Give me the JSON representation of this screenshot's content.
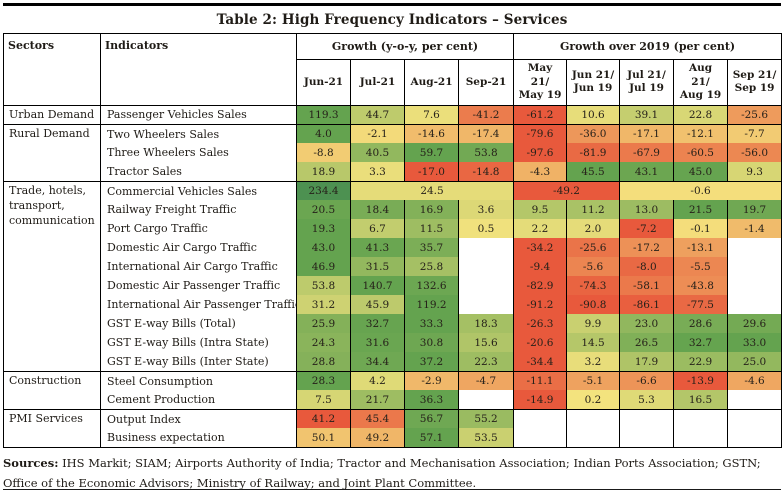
{
  "title": "Table 2: High Frequency Indicators – Services",
  "colors": {
    "scale_red": "#E8593C",
    "scale_yellow": "#F4E37E",
    "scale_green": "#64A34F",
    "dark_green_max": "#4D9151",
    "border": "#000000"
  },
  "table": {
    "col_headers": {
      "sectors": "Sectors",
      "indicators": "Indicators",
      "group_yoy": "Growth (y-o-y, per cent)",
      "group_2019": "Growth over 2019 (per cent)",
      "months_yoy": [
        "Jun-21",
        "Jul-21",
        "Aug-21",
        "Sep-21"
      ],
      "months_2019": [
        "May 21/\nMay 19",
        "Jun 21/\nJun 19",
        "Jul 21/\nJul 19",
        "Aug 21/\nAug 19",
        "Sep 21/\nSep 19"
      ]
    },
    "sections": [
      {
        "sector": "Urban Demand",
        "rows": [
          {
            "indicator": "Passenger Vehicles Sales",
            "cells": [
              "119.3",
              "44.7",
              "7.6",
              "-41.2",
              "-61.2",
              "10.6",
              "39.1",
              "22.8",
              "-25.6"
            ]
          }
        ]
      },
      {
        "sector": "Rural Demand",
        "rows": [
          {
            "indicator": "Two Wheelers Sales",
            "cells": [
              "4.0",
              "-2.1",
              "-14.6",
              "-17.4",
              "-79.6",
              "-36.0",
              "-17.1",
              "-12.1",
              "-7.7"
            ]
          },
          {
            "indicator": "Three Wheelers Sales",
            "cells": [
              "-8.8",
              "40.5",
              "59.7",
              "53.8",
              "-97.6",
              "-81.9",
              "-67.9",
              "-60.5",
              "-56.0"
            ]
          },
          {
            "indicator": "Tractor Sales",
            "cells": [
              "18.9",
              "3.3",
              "-17.0",
              "-14.8",
              "-4.3",
              "45.5",
              "43.1",
              "45.0",
              "9.3"
            ]
          }
        ]
      },
      {
        "sector": "Trade, hotels, transport, communication",
        "rows": [
          {
            "indicator": "Commercial Vehicles Sales",
            "cells": [
              {
                "v": "234.4",
                "c": "#4D9151"
              },
              {
                "v": "24.5",
                "span": 3
              },
              {
                "v": "-49.2",
                "span": 2
              },
              {
                "v": "-0.6",
                "span": 3
              }
            ]
          },
          {
            "indicator": "Railway Freight Traffic",
            "cells": [
              "20.5",
              "18.4",
              "16.9",
              "3.6",
              "9.5",
              "11.2",
              "13.0",
              "21.5",
              "19.7"
            ]
          },
          {
            "indicator": "Port Cargo Traffic",
            "cells": [
              "19.3",
              "6.7",
              "11.5",
              "0.5",
              "2.2",
              "2.0",
              "-7.2",
              "-0.1",
              "-1.4"
            ]
          },
          {
            "indicator": "Domestic Air Cargo Traffic",
            "cells": [
              "43.0",
              "41.3",
              "35.7",
              null,
              "-34.2",
              "-25.6",
              "-17.2",
              "-13.1",
              null
            ]
          },
          {
            "indicator": "International Air Cargo Traffic",
            "cells": [
              "46.9",
              "31.5",
              "25.8",
              null,
              "-9.4",
              "-5.6",
              "-8.0",
              "-5.5",
              null
            ]
          },
          {
            "indicator": "Domestic Air Passenger Traffic",
            "cells": [
              "53.8",
              "140.7",
              "132.6",
              null,
              "-82.9",
              "-74.3",
              "-58.1",
              "-43.8",
              null
            ]
          },
          {
            "indicator": "International Air Passenger Traffic",
            "cells": [
              "31.2",
              "45.9",
              "119.2",
              null,
              "-91.2",
              "-90.8",
              "-86.1",
              "-77.5",
              null
            ]
          },
          {
            "indicator": "GST E-way Bills (Total)",
            "cells": [
              "25.9",
              "32.7",
              "33.3",
              "18.3",
              "-26.3",
              "9.9",
              "23.0",
              "28.6",
              "29.6"
            ]
          },
          {
            "indicator": "GST E-way Bills (Intra State)",
            "cells": [
              "24.3",
              "31.6",
              "30.8",
              "15.6",
              "-20.6",
              "14.5",
              "26.5",
              "32.7",
              "33.0"
            ]
          },
          {
            "indicator": "GST E-way Bills (Inter State)",
            "cells": [
              "28.8",
              "34.4",
              "37.2",
              "22.3",
              "-34.4",
              "3.2",
              "17.9",
              "22.9",
              "25.0"
            ]
          }
        ]
      },
      {
        "sector": "Construction",
        "rows": [
          {
            "indicator": "Steel Consumption",
            "cells": [
              "28.3",
              "4.2",
              "-2.9",
              "-4.7",
              "-11.1",
              "-5.1",
              "-6.6",
              "-13.9",
              "-4.6"
            ]
          },
          {
            "indicator": "Cement Production",
            "cells": [
              "7.5",
              "21.7",
              "36.3",
              null,
              "-14.9",
              "0.2",
              "5.3",
              "16.5",
              null
            ]
          }
        ]
      },
      {
        "sector": "PMI Services",
        "rows": [
          {
            "indicator": "Output Index",
            "pmi": true,
            "cells": [
              "41.2",
              "45.4",
              "56.7",
              "55.2",
              null,
              null,
              null,
              null,
              null
            ]
          },
          {
            "indicator": "Business expectation",
            "pmi": true,
            "cells": [
              "50.1",
              "49.2",
              "57.1",
              "53.5",
              null,
              null,
              null,
              null,
              null
            ]
          }
        ]
      }
    ]
  },
  "sources": {
    "label": "Sources:",
    "text": " IHS Markit; SIAM; Airports Authority of India; Tractor and Mechanisation Association; Indian Ports Association; GSTN; Office of the Economic Advisors; Ministry of Railway; and Joint Plant Committee."
  }
}
